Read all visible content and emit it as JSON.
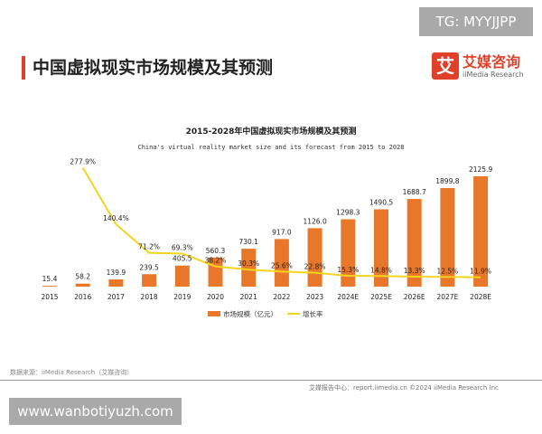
{
  "watermark_top": "TG: MYYJJPP",
  "header": {
    "title": "中国虚拟现实市场规模及其预测"
  },
  "logo": {
    "cn": "艾媒咨询",
    "en": "iiMedia Research",
    "mark": "艾"
  },
  "chart_data": {
    "type": "bar+line",
    "title": "2015-2028年中国虚拟现实市场规模及其预测",
    "subtitle": "China's virtual reality market size and its forecast from 2015 to 2028",
    "categories": [
      "2015",
      "2016",
      "2017",
      "2018",
      "2019",
      "2020",
      "2021",
      "2022",
      "2023",
      "2024E",
      "2025E",
      "2026E",
      "2027E",
      "2028E"
    ],
    "series": [
      {
        "name": "市场规模（亿元）",
        "type": "bar",
        "color": "#e9772a",
        "values": [
          15.4,
          58.2,
          139.9,
          239.5,
          405.5,
          560.3,
          730.1,
          917.0,
          1126.0,
          1298.3,
          1490.5,
          1688.7,
          1899.8,
          2125.9
        ],
        "labels": [
          "15.4",
          "58.2",
          "139.9",
          "239.5",
          "405.5",
          "560.3",
          "730.1",
          "917.0",
          "1126.0",
          "1298.3",
          "1490.5",
          "1688.7",
          "1899.8",
          "2125.9"
        ]
      },
      {
        "name": "增长率",
        "type": "line",
        "color": "#f2d51c",
        "values": [
          null,
          277.9,
          140.4,
          71.2,
          69.3,
          38.2,
          30.3,
          25.6,
          22.8,
          15.3,
          14.8,
          13.3,
          12.5,
          11.9
        ],
        "labels": [
          "",
          "277.9%",
          "140.4%",
          "71.2%",
          "69.3%",
          "38.2%",
          "30.3%",
          "25.6%",
          "22.8%",
          "15.3%",
          "14.8%",
          "13.3%",
          "12.5%",
          "11.9%"
        ]
      }
    ],
    "legend_placement": "bottom",
    "grid": false
  },
  "footer": {
    "source": "数据来源：iiMedia Research（艾媒咨询）",
    "credit": "艾媒报告中心：report.iimedia.cn  ©2024  iiMedia Research Inc"
  },
  "watermark_bottom": "www.wanbotiyuzh.com"
}
